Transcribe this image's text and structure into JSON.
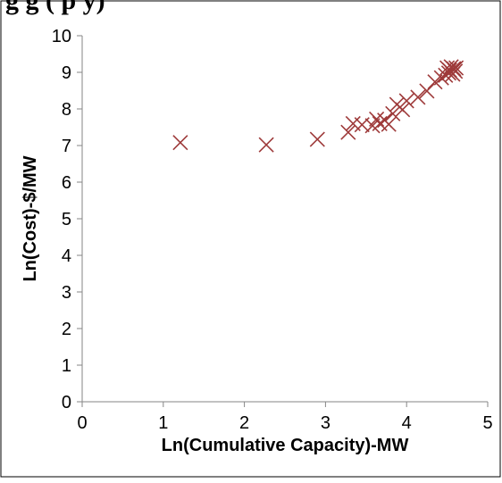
{
  "chart_data": {
    "type": "scatter",
    "title": "g                              g          (   p   y)",
    "xlabel": "Ln(Cumulative Capacity)-MW",
    "ylabel": "Ln(Cost)-$/MW",
    "xlim": [
      0,
      5
    ],
    "ylim": [
      0,
      10
    ],
    "x_ticks": [
      "0",
      "1",
      "2",
      "3",
      "4",
      "5"
    ],
    "y_ticks": [
      "0",
      "1",
      "2",
      "3",
      "4",
      "5",
      "6",
      "7",
      "8",
      "9",
      "10"
    ],
    "grid": false,
    "legend": "none",
    "marker": "x",
    "marker_color": "#9E3A3A",
    "series": [
      {
        "points": [
          [
            1.21,
            7.08
          ],
          [
            2.27,
            7.02
          ],
          [
            2.9,
            7.17
          ],
          [
            3.28,
            7.36
          ],
          [
            3.34,
            7.6
          ],
          [
            3.45,
            7.57
          ],
          [
            3.58,
            7.54
          ],
          [
            3.63,
            7.72
          ],
          [
            3.67,
            7.6
          ],
          [
            3.73,
            7.69
          ],
          [
            3.78,
            7.58
          ],
          [
            3.83,
            7.87
          ],
          [
            3.88,
            8.12
          ],
          [
            3.95,
            7.98
          ],
          [
            4.0,
            8.22
          ],
          [
            4.14,
            8.32
          ],
          [
            4.25,
            8.49
          ],
          [
            4.35,
            8.74
          ],
          [
            4.43,
            8.85
          ],
          [
            4.48,
            8.92
          ],
          [
            4.5,
            9.12
          ],
          [
            4.52,
            8.98
          ],
          [
            4.53,
            9.06
          ],
          [
            4.55,
            9.15
          ],
          [
            4.57,
            8.95
          ],
          [
            4.58,
            9.1
          ],
          [
            4.6,
            9.03
          ],
          [
            4.61,
            9.12
          ]
        ]
      }
    ]
  }
}
